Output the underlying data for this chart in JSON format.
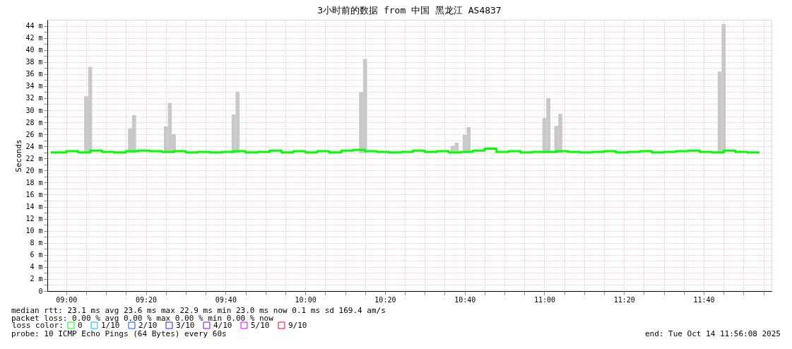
{
  "chart_data": {
    "type": "step",
    "title": "3小时前的数据 from 中国 黑龙江 AS4837",
    "ylabel": "Seconds",
    "legend_title": "loss color:",
    "legend": "bottom left",
    "grid": true,
    "xlim": [
      8.9356,
      11.9356
    ],
    "xticks": [
      {
        "value": 9.0,
        "label": "09:00"
      },
      {
        "value": 9.0833,
        "label": null
      },
      {
        "value": 9.1667,
        "label": null
      },
      {
        "value": 9.25,
        "label": null
      },
      {
        "value": 9.3333,
        "label": "09:20"
      },
      {
        "value": 9.4167,
        "label": null
      },
      {
        "value": 9.5,
        "label": null
      },
      {
        "value": 9.5833,
        "label": null
      },
      {
        "value": 9.6667,
        "label": "09:40"
      },
      {
        "value": 9.75,
        "label": null
      },
      {
        "value": 9.8333,
        "label": null
      },
      {
        "value": 9.9167,
        "label": null
      },
      {
        "value": 10.0,
        "label": "10:00"
      },
      {
        "value": 10.0833,
        "label": null
      },
      {
        "value": 10.1667,
        "label": null
      },
      {
        "value": 10.25,
        "label": null
      },
      {
        "value": 10.3333,
        "label": "10:20"
      },
      {
        "value": 10.4167,
        "label": null
      },
      {
        "value": 10.5,
        "label": null
      },
      {
        "value": 10.5833,
        "label": null
      },
      {
        "value": 10.6667,
        "label": "10:40"
      },
      {
        "value": 10.75,
        "label": null
      },
      {
        "value": 10.8333,
        "label": null
      },
      {
        "value": 10.9167,
        "label": null
      },
      {
        "value": 11.0,
        "label": "11:00"
      },
      {
        "value": 11.0833,
        "label": null
      },
      {
        "value": 11.1667,
        "label": null
      },
      {
        "value": 11.25,
        "label": null
      },
      {
        "value": 11.3333,
        "label": "11:20"
      },
      {
        "value": 11.4167,
        "label": null
      },
      {
        "value": 11.5,
        "label": null
      },
      {
        "value": 11.5833,
        "label": null
      },
      {
        "value": 11.6667,
        "label": "11:40"
      },
      {
        "value": 11.75,
        "label": null
      },
      {
        "value": 11.8333,
        "label": null
      },
      {
        "value": 11.9167,
        "label": null
      }
    ],
    "ylim": [
      0,
      45
    ],
    "yticks": [
      0,
      {
        "value": 1,
        "label": null
      },
      {
        "value": 2,
        "label": "2 m"
      },
      {
        "value": 3,
        "label": null
      },
      {
        "value": 4,
        "label": "4 m"
      },
      {
        "value": 5,
        "label": null
      },
      {
        "value": 6,
        "label": "6 m"
      },
      {
        "value": 7,
        "label": null
      },
      {
        "value": 8,
        "label": "8 m"
      },
      {
        "value": 9,
        "label": null
      },
      {
        "value": 10,
        "label": "10 m"
      },
      {
        "value": 11,
        "label": null
      },
      {
        "value": 12,
        "label": "12 m"
      },
      {
        "value": 13,
        "label": null
      },
      {
        "value": 14,
        "label": "14 m"
      },
      {
        "value": 15,
        "label": null
      },
      {
        "value": 16,
        "label": "16 m"
      },
      {
        "value": 17,
        "label": null
      },
      {
        "value": 18,
        "label": "18 m"
      },
      {
        "value": 19,
        "label": null
      },
      {
        "value": 20,
        "label": "20 m"
      },
      {
        "value": 21,
        "label": null
      },
      {
        "value": 22,
        "label": "22 m"
      },
      {
        "value": 23,
        "label": null
      },
      {
        "value": 24,
        "label": "24 m"
      },
      {
        "value": 25,
        "label": null
      },
      {
        "value": 26,
        "label": "26 m"
      },
      {
        "value": 27,
        "label": null
      },
      {
        "value": 28,
        "label": "28 m"
      },
      {
        "value": 29,
        "label": null
      },
      {
        "value": 30,
        "label": "30 m"
      },
      {
        "value": 31,
        "label": null
      },
      {
        "value": 32,
        "label": "32 m"
      },
      {
        "value": 33,
        "label": null
      },
      {
        "value": 34,
        "label": "34 m"
      },
      {
        "value": 35,
        "label": null
      },
      {
        "value": 36,
        "label": "36 m"
      },
      {
        "value": 37,
        "label": null
      },
      {
        "value": 38,
        "label": "38 m"
      },
      {
        "value": 39,
        "label": null
      },
      {
        "value": 40,
        "label": "40 m"
      },
      {
        "value": 41,
        "label": null
      },
      {
        "value": 42,
        "label": "42 m"
      },
      {
        "value": 43,
        "label": null
      },
      {
        "value": 44,
        "label": "44 m"
      }
    ],
    "series": [
      {
        "type": "bar",
        "color": "#c8c8c8",
        "x": [
          9.0833,
          9.1,
          9.2667,
          9.2833,
          9.4167,
          9.4333,
          9.45,
          9.7,
          9.7167,
          10.2333,
          10.25,
          10.6167,
          10.6333,
          10.6667,
          10.6833,
          11.0,
          11.0167,
          11.05,
          11.0667,
          11.7333,
          11.75
        ],
        "base": [
          22.9,
          22.9,
          22.9,
          22.9,
          22.9,
          22.9,
          22.9,
          22.9,
          22.9,
          22.9,
          22.9,
          22.9,
          22.9,
          22.9,
          22.9,
          22.9,
          22.9,
          22.9,
          22.9,
          22.9,
          22.9
        ],
        "values": [
          9.4,
          14.3,
          4.1,
          6.3,
          4.4,
          8.3,
          3.1,
          6.4,
          10.2,
          10.1,
          15.6,
          1.2,
          1.7,
          3.0,
          4.3,
          5.8,
          9.1,
          4.5,
          6.5,
          13.5,
          21.4
        ]
      },
      {
        "name": "0",
        "color": "#00ff00",
        "x": [
          8.9356,
          9.0,
          9.05,
          9.1,
          9.15,
          9.2,
          9.25,
          9.3,
          9.35,
          9.4,
          9.45,
          9.5,
          9.55,
          9.6,
          9.65,
          9.7,
          9.75,
          9.8,
          9.85,
          9.9,
          9.95,
          10.0,
          10.05,
          10.1,
          10.15,
          10.2,
          10.25,
          10.3,
          10.35,
          10.4,
          10.45,
          10.5,
          10.55,
          10.6,
          10.65,
          10.7,
          10.75,
          10.8,
          10.85,
          10.9,
          10.95,
          11.0,
          11.05,
          11.1,
          11.15,
          11.2,
          11.25,
          11.3,
          11.35,
          11.4,
          11.45,
          11.5,
          11.55,
          11.6,
          11.65,
          11.7,
          11.75,
          11.8,
          11.85,
          11.9
        ],
        "values": [
          23.0,
          23.2,
          23.0,
          23.3,
          23.1,
          23.0,
          23.2,
          23.3,
          23.2,
          23.1,
          23.2,
          23.0,
          23.1,
          23.0,
          23.1,
          23.2,
          23.0,
          23.1,
          23.3,
          23.0,
          23.2,
          23.0,
          23.2,
          23.0,
          23.3,
          23.4,
          23.2,
          23.1,
          23.0,
          23.1,
          23.3,
          23.1,
          23.2,
          23.0,
          23.1,
          23.3,
          23.6,
          23.1,
          23.2,
          23.0,
          23.1,
          23.1,
          23.2,
          23.1,
          23.0,
          23.1,
          23.2,
          23.0,
          23.1,
          23.2,
          23.0,
          23.1,
          23.2,
          23.3,
          23.1,
          23.0,
          23.3,
          23.1,
          23.0,
          23.0
        ]
      },
      {
        "name": "1/10",
        "color": "#00b8ff"
      },
      {
        "name": "2/10",
        "color": "#0059ff"
      },
      {
        "name": "3/10",
        "color": "#5e00ff"
      },
      {
        "name": "4/10",
        "color": "#7e00ff"
      },
      {
        "name": "5/10",
        "color": "#dd00ff"
      },
      {
        "name": "9/10",
        "color": "#ff0000"
      }
    ],
    "annotations": [
      "median rtt:  23.1 ms avg  23.6 ms max  22.9 ms min  23.0 ms now  0.1 ms sd  169.4   am/s",
      "packet loss: 0.00 % avg  0.00 % max  0.00 % min  0.00 % now",
      "probe:       10 ICMP Echo Pings (64 Bytes) every 60s",
      "end: Tue Oct 14 11:56:08 2025"
    ]
  }
}
